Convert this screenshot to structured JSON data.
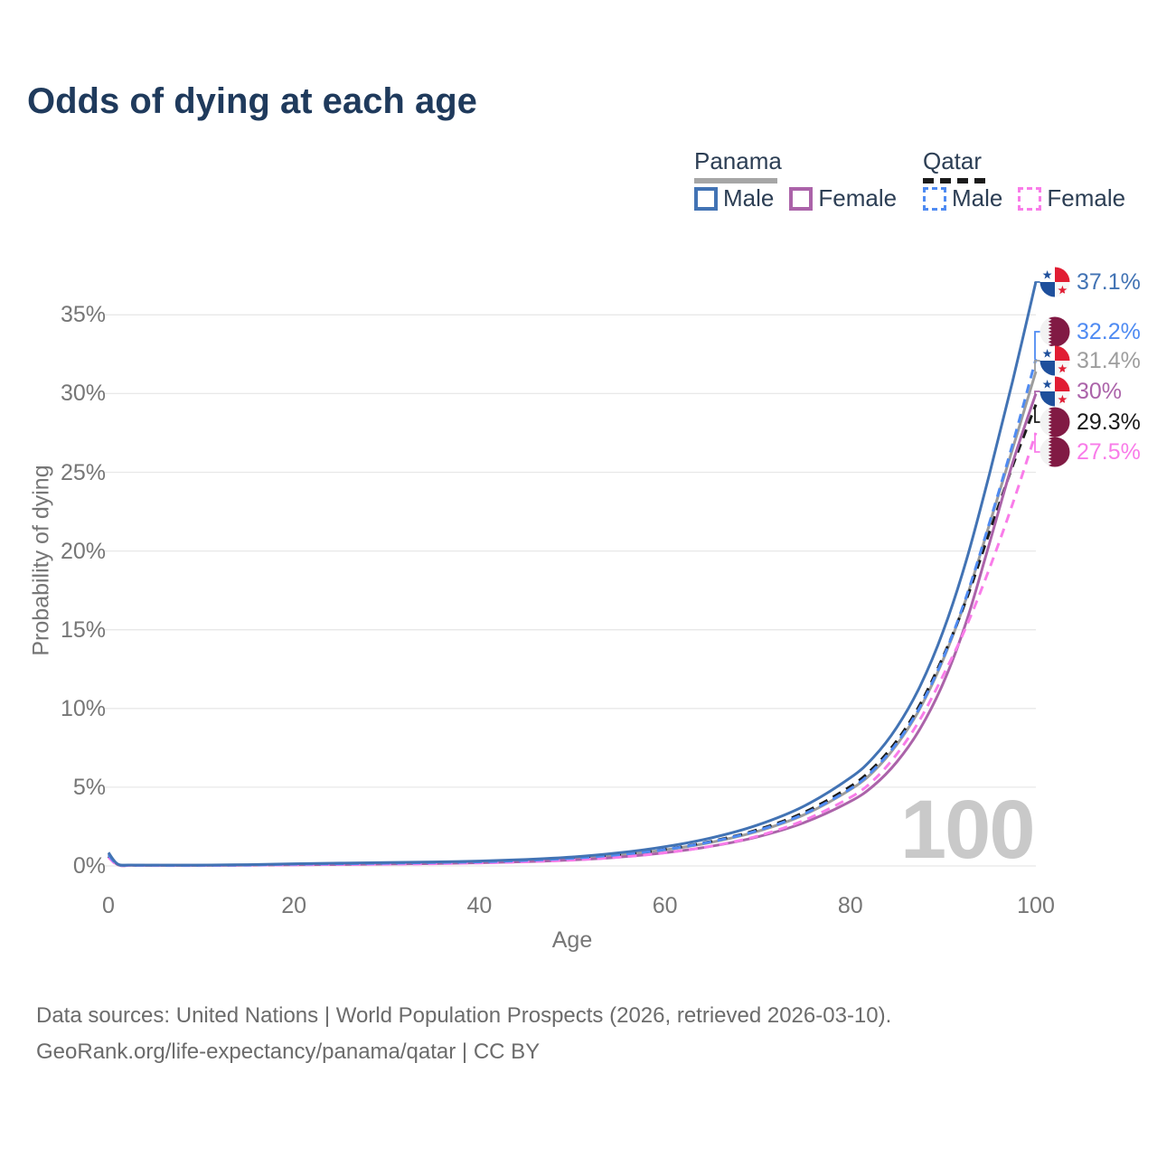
{
  "title": "Odds of dying at each age",
  "legend": {
    "groups": [
      {
        "label": "Panama",
        "line_style": "solid",
        "underline_color": "#a6a6a6",
        "items": [
          {
            "label": "Male",
            "color": "#4273b4"
          },
          {
            "label": "Female",
            "color": "#ab63a9"
          }
        ]
      },
      {
        "label": "Qatar",
        "line_style": "dashed",
        "underline_color": "#1b1b1b",
        "items": [
          {
            "label": "Male",
            "color": "#4f8bf2"
          },
          {
            "label": "Female",
            "color": "#f97ce9"
          }
        ]
      }
    ]
  },
  "chart_data": {
    "type": "line",
    "title": "Odds of dying at each age",
    "xlabel": "Age",
    "ylabel": "Probability of dying",
    "xlim": [
      0,
      100
    ],
    "ylim": [
      0,
      37.5
    ],
    "grid": "horizontal",
    "legend_position": "top-right",
    "watermark": "100",
    "x_ticks": [
      {
        "value": 0,
        "label": "0"
      },
      {
        "value": 20,
        "label": "20"
      },
      {
        "value": 40,
        "label": "40"
      },
      {
        "value": 60,
        "label": "60"
      },
      {
        "value": 80,
        "label": "80"
      },
      {
        "value": 100,
        "label": "100"
      }
    ],
    "y_ticks": [
      {
        "value": 0,
        "label": "0%"
      },
      {
        "value": 5,
        "label": "5%"
      },
      {
        "value": 10,
        "label": "10%"
      },
      {
        "value": 15,
        "label": "15%"
      },
      {
        "value": 20,
        "label": "20%"
      },
      {
        "value": 25,
        "label": "25%"
      },
      {
        "value": 30,
        "label": "30%"
      },
      {
        "value": 35,
        "label": "35%"
      }
    ],
    "series": [
      {
        "name": "Panama Male",
        "color": "#4273b4",
        "dash": "solid",
        "flag": "panama",
        "end_label": "37.1%",
        "end_value": 37.1,
        "x": [
          0,
          1,
          2.5,
          5,
          10,
          15,
          20,
          25,
          30,
          35,
          40,
          45,
          50,
          55,
          60,
          65,
          70,
          75,
          80,
          82.5,
          85,
          87.5,
          90,
          92.5,
          95,
          97.5,
          100
        ],
        "y": [
          0.85,
          0.12,
          0.06,
          0.05,
          0.05,
          0.08,
          0.14,
          0.18,
          0.21,
          0.25,
          0.31,
          0.41,
          0.57,
          0.83,
          1.22,
          1.78,
          2.6,
          3.8,
          5.6,
          6.9,
          8.8,
          11.4,
          14.9,
          19.4,
          24.9,
          30.8,
          37.1
        ]
      },
      {
        "name": "Qatar Male",
        "color": "#4f8bf2",
        "dash": "dashed",
        "flag": "qatar",
        "end_label": "32.2%",
        "end_value": 32.2,
        "x": [
          0,
          1,
          2.5,
          5,
          10,
          15,
          20,
          25,
          30,
          35,
          40,
          45,
          50,
          55,
          60,
          65,
          70,
          75,
          80,
          82.5,
          85,
          87.5,
          90,
          92.5,
          95,
          97.5,
          100
        ],
        "y": [
          0.7,
          0.09,
          0.05,
          0.04,
          0.04,
          0.06,
          0.11,
          0.14,
          0.17,
          0.21,
          0.26,
          0.35,
          0.49,
          0.71,
          1.04,
          1.54,
          2.25,
          3.3,
          4.9,
          6.1,
          7.8,
          10.1,
          13.2,
          17.1,
          21.8,
          26.8,
          32.2
        ]
      },
      {
        "name": "Panama",
        "color": "#9d9d9d",
        "dash": "solid",
        "flag": "panama",
        "end_label": "31.4%",
        "end_value": 31.4,
        "x": [
          0,
          1,
          2.5,
          5,
          10,
          15,
          20,
          25,
          30,
          35,
          40,
          45,
          50,
          55,
          60,
          65,
          70,
          75,
          80,
          82.5,
          85,
          87.5,
          90,
          92.5,
          95,
          97.5,
          100
        ],
        "y": [
          0.8,
          0.1,
          0.05,
          0.045,
          0.045,
          0.065,
          0.11,
          0.14,
          0.165,
          0.2,
          0.255,
          0.34,
          0.475,
          0.7,
          1.02,
          1.5,
          2.2,
          3.25,
          4.85,
          6.0,
          7.7,
          10.0,
          13.1,
          17.0,
          21.7,
          26.5,
          31.4
        ]
      },
      {
        "name": "Panama Female",
        "color": "#ab63a9",
        "dash": "solid",
        "flag": "panama",
        "end_label": "30%",
        "end_value": 30,
        "x": [
          0,
          1,
          2.5,
          5,
          10,
          15,
          20,
          25,
          30,
          35,
          40,
          45,
          50,
          55,
          60,
          65,
          70,
          75,
          80,
          82.5,
          85,
          87.5,
          90,
          92.5,
          95,
          97.5,
          100
        ],
        "y": [
          0.7,
          0.08,
          0.04,
          0.035,
          0.035,
          0.05,
          0.07,
          0.09,
          0.12,
          0.15,
          0.2,
          0.27,
          0.38,
          0.56,
          0.84,
          1.25,
          1.85,
          2.75,
          4.1,
          5.1,
          6.6,
          8.7,
          11.6,
          15.5,
          20.5,
          25.6,
          30.0
        ]
      },
      {
        "name": "Qatar",
        "color": "#1b1b1b",
        "dash": "dashed",
        "flag": "qatar",
        "end_label": "29.3%",
        "end_value": 29.3,
        "x": [
          0,
          1,
          2.5,
          5,
          10,
          15,
          20,
          25,
          30,
          35,
          40,
          45,
          50,
          55,
          60,
          65,
          70,
          75,
          80,
          82.5,
          85,
          87.5,
          90,
          92.5,
          95,
          97.5,
          100
        ],
        "y": [
          0.6,
          0.07,
          0.04,
          0.03,
          0.03,
          0.055,
          0.095,
          0.125,
          0.15,
          0.19,
          0.25,
          0.34,
          0.48,
          0.71,
          1.05,
          1.56,
          2.3,
          3.4,
          5.05,
          6.25,
          7.95,
          10.25,
          13.3,
          16.9,
          21.2,
          25.4,
          29.3
        ]
      },
      {
        "name": "Qatar Female",
        "color": "#f97ce9",
        "dash": "dashed",
        "flag": "qatar",
        "end_label": "27.5%",
        "end_value": 27.5,
        "x": [
          0,
          1,
          2.5,
          5,
          10,
          15,
          20,
          25,
          30,
          35,
          40,
          45,
          50,
          55,
          60,
          65,
          70,
          75,
          80,
          82.5,
          85,
          87.5,
          90,
          92.5,
          95,
          97.5,
          100
        ],
        "y": [
          0.55,
          0.06,
          0.035,
          0.025,
          0.025,
          0.045,
          0.07,
          0.09,
          0.11,
          0.14,
          0.19,
          0.26,
          0.37,
          0.55,
          0.83,
          1.26,
          1.9,
          2.9,
          4.35,
          5.45,
          7.1,
          9.3,
          12.1,
          15.2,
          18.9,
          23.0,
          27.5
        ]
      }
    ]
  },
  "footer": {
    "line1": "Data sources: United Nations | World Population Prospects (2026, retrieved 2026-03-10).",
    "line2": "GeoRank.org/life-expectancy/panama/qatar | CC BY"
  },
  "colors": {
    "title": "#1f3a5c",
    "axis_text": "#767676",
    "grid": "#e8e8e8",
    "watermark": "#c9c9c9",
    "footer_text": "#6b6b6b",
    "panama_flag_red": "#e11d33",
    "panama_flag_blue": "#1e4f9c",
    "qatar_flag_maroon": "#811a44"
  }
}
